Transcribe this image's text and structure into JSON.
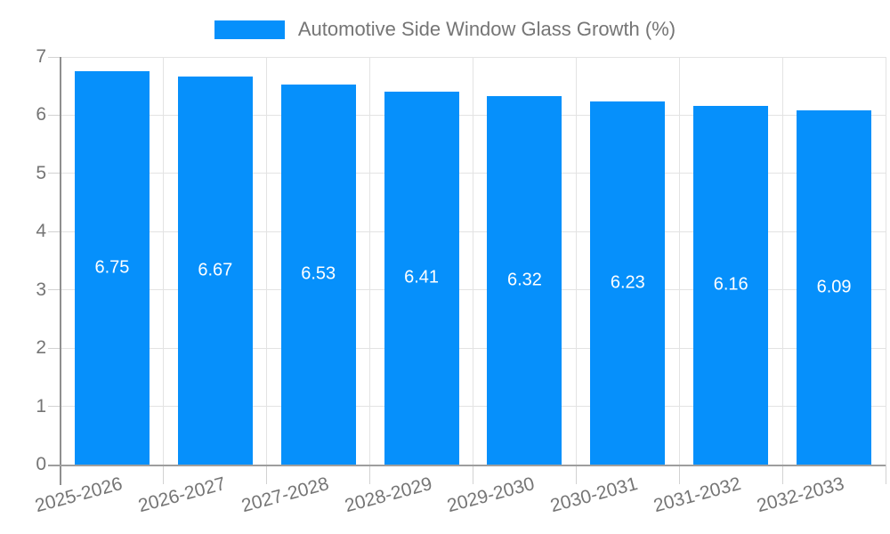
{
  "chart_data": {
    "type": "bar",
    "title": "Automotive Side Window Glass Growth (%)",
    "legend": {
      "position": "top",
      "label": "Automotive Side Window Glass Growth (%)"
    },
    "categories": [
      "2025-2026",
      "2026-2027",
      "2027-2028",
      "2028-2029",
      "2029-2030",
      "2030-2031",
      "2031-2032",
      "2032-2033"
    ],
    "values": [
      6.75,
      6.67,
      6.53,
      6.41,
      6.32,
      6.23,
      6.16,
      6.09
    ],
    "value_labels": [
      "6.75",
      "6.67",
      "6.53",
      "6.41",
      "6.32",
      "6.23",
      "6.16",
      "6.09"
    ],
    "xlabel": "",
    "ylabel": "",
    "ylim": [
      0,
      7
    ],
    "yticks": [
      0,
      1,
      2,
      3,
      4,
      5,
      6,
      7
    ],
    "grid": true,
    "x_label_rotation_deg": -15,
    "colors": {
      "bar": "#0690fb",
      "axis_text": "#757575",
      "gridline": "#e3e3e3",
      "axis_line": "#8f8f8f",
      "tick": "#d2d2d2",
      "bar_label": "#ffffff",
      "background": "#ffffff"
    }
  }
}
